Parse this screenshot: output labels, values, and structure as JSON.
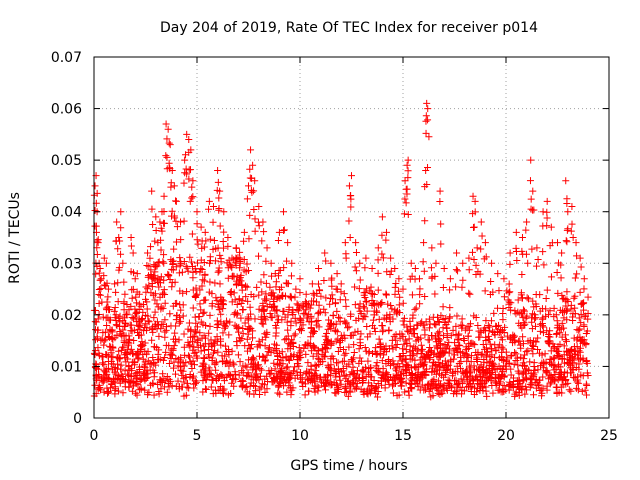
{
  "chart_data": {
    "type": "scatter",
    "title": "Day 204 of 2019, Rate Of TEC Index for receiver p014",
    "xlabel": "GPS time / hours",
    "ylabel": "ROTI / TECUs",
    "xlim": [
      0,
      25
    ],
    "ylim": [
      0,
      0.07
    ],
    "xticks": [
      0,
      5,
      10,
      15,
      20,
      25
    ],
    "xtick_labels": [
      "0",
      "5",
      "10",
      "15",
      "20",
      "25"
    ],
    "yticks": [
      0,
      0.01,
      0.02,
      0.03,
      0.04,
      0.05,
      0.06,
      0.07
    ],
    "ytick_labels": [
      "0",
      "0.01",
      "0.02",
      "0.03",
      "0.04",
      "0.05",
      "0.06",
      "0.07"
    ],
    "grid": true,
    "marker": "+",
    "color": "#ff0000",
    "series": [
      {
        "name": "ROTI",
        "points": [
          [
            0.05,
            0.045
          ],
          [
            0.1,
            0.047
          ],
          [
            0.12,
            0.036
          ],
          [
            0.15,
            0.04
          ],
          [
            0.2,
            0.034
          ],
          [
            0.25,
            0.03
          ],
          [
            0.3,
            0.029
          ],
          [
            0.35,
            0.027
          ],
          [
            0.5,
            0.031
          ],
          [
            0.6,
            0.03
          ],
          [
            0.7,
            0.025
          ],
          [
            0.8,
            0.019
          ],
          [
            1.0,
            0.026
          ],
          [
            1.1,
            0.038
          ],
          [
            1.2,
            0.035
          ],
          [
            1.3,
            0.04
          ],
          [
            1.4,
            0.03
          ],
          [
            1.5,
            0.024
          ],
          [
            1.6,
            0.022
          ],
          [
            1.7,
            0.021
          ],
          [
            1.8,
            0.035
          ],
          [
            1.9,
            0.032
          ],
          [
            2.0,
            0.027
          ],
          [
            2.1,
            0.028
          ],
          [
            2.2,
            0.024
          ],
          [
            2.3,
            0.019
          ],
          [
            2.4,
            0.022
          ],
          [
            2.5,
            0.023
          ],
          [
            2.6,
            0.032
          ],
          [
            2.8,
            0.044
          ],
          [
            3.0,
            0.039
          ],
          [
            3.1,
            0.034
          ],
          [
            3.2,
            0.038
          ],
          [
            3.3,
            0.04
          ],
          [
            3.4,
            0.043
          ],
          [
            3.5,
            0.057
          ],
          [
            3.6,
            0.056
          ],
          [
            3.7,
            0.053
          ],
          [
            3.8,
            0.048
          ],
          [
            3.9,
            0.045
          ],
          [
            4.0,
            0.042
          ],
          [
            4.2,
            0.038
          ],
          [
            4.4,
            0.05
          ],
          [
            4.5,
            0.055
          ],
          [
            4.6,
            0.054
          ],
          [
            4.7,
            0.052
          ],
          [
            4.8,
            0.046
          ],
          [
            5.0,
            0.04
          ],
          [
            5.2,
            0.037
          ],
          [
            5.4,
            0.036
          ],
          [
            5.6,
            0.042
          ],
          [
            5.8,
            0.041
          ],
          [
            6.0,
            0.048
          ],
          [
            6.1,
            0.044
          ],
          [
            6.3,
            0.04
          ],
          [
            6.5,
            0.035
          ],
          [
            6.7,
            0.031
          ],
          [
            6.9,
            0.033
          ],
          [
            7.1,
            0.03
          ],
          [
            7.3,
            0.036
          ],
          [
            7.5,
            0.045
          ],
          [
            7.6,
            0.052
          ],
          [
            7.7,
            0.049
          ],
          [
            7.8,
            0.046
          ],
          [
            8.0,
            0.041
          ],
          [
            8.2,
            0.038
          ],
          [
            8.4,
            0.033
          ],
          [
            8.6,
            0.03
          ],
          [
            8.8,
            0.028
          ],
          [
            9.0,
            0.036
          ],
          [
            9.2,
            0.04
          ],
          [
            9.4,
            0.034
          ],
          [
            9.6,
            0.03
          ],
          [
            9.8,
            0.025
          ],
          [
            10.0,
            0.027
          ],
          [
            10.3,
            0.024
          ],
          [
            10.6,
            0.026
          ],
          [
            10.9,
            0.029
          ],
          [
            11.2,
            0.032
          ],
          [
            11.5,
            0.03
          ],
          [
            11.8,
            0.028
          ],
          [
            12.0,
            0.026
          ],
          [
            12.2,
            0.034
          ],
          [
            12.4,
            0.045
          ],
          [
            12.5,
            0.047
          ],
          [
            12.7,
            0.034
          ],
          [
            12.9,
            0.03
          ],
          [
            13.2,
            0.031
          ],
          [
            13.5,
            0.029
          ],
          [
            13.8,
            0.033
          ],
          [
            14.0,
            0.039
          ],
          [
            14.2,
            0.036
          ],
          [
            14.4,
            0.031
          ],
          [
            14.6,
            0.029
          ],
          [
            14.8,
            0.027
          ],
          [
            15.0,
            0.025
          ],
          [
            15.1,
            0.046
          ],
          [
            15.2,
            0.049
          ],
          [
            15.25,
            0.05
          ],
          [
            15.4,
            0.03
          ],
          [
            15.6,
            0.029
          ],
          [
            15.8,
            0.027
          ],
          [
            16.0,
            0.034
          ],
          [
            16.1,
            0.048
          ],
          [
            16.15,
            0.061
          ],
          [
            16.2,
            0.06
          ],
          [
            16.4,
            0.033
          ],
          [
            16.6,
            0.03
          ],
          [
            16.8,
            0.044
          ],
          [
            17.0,
            0.029
          ],
          [
            17.3,
            0.027
          ],
          [
            17.6,
            0.032
          ],
          [
            17.9,
            0.03
          ],
          [
            18.2,
            0.031
          ],
          [
            18.4,
            0.043
          ],
          [
            18.5,
            0.042
          ],
          [
            18.6,
            0.033
          ],
          [
            18.8,
            0.038
          ],
          [
            19.0,
            0.034
          ],
          [
            19.3,
            0.03
          ],
          [
            19.6,
            0.028
          ],
          [
            19.9,
            0.027
          ],
          [
            20.2,
            0.032
          ],
          [
            20.5,
            0.036
          ],
          [
            20.8,
            0.035
          ],
          [
            21.0,
            0.038
          ],
          [
            21.2,
            0.05
          ],
          [
            21.3,
            0.044
          ],
          [
            21.5,
            0.033
          ],
          [
            21.8,
            0.04
          ],
          [
            22.0,
            0.042
          ],
          [
            22.2,
            0.037
          ],
          [
            22.5,
            0.034
          ],
          [
            22.7,
            0.032
          ],
          [
            22.9,
            0.046
          ],
          [
            23.0,
            0.04
          ],
          [
            23.2,
            0.041
          ],
          [
            23.4,
            0.034
          ],
          [
            23.6,
            0.031
          ],
          [
            23.8,
            0.027
          ]
        ]
      }
    ],
    "baseline_band": {
      "hours": [
        0,
        24
      ],
      "roti_min": 0.004,
      "roti_max": 0.027,
      "density": "high"
    }
  }
}
